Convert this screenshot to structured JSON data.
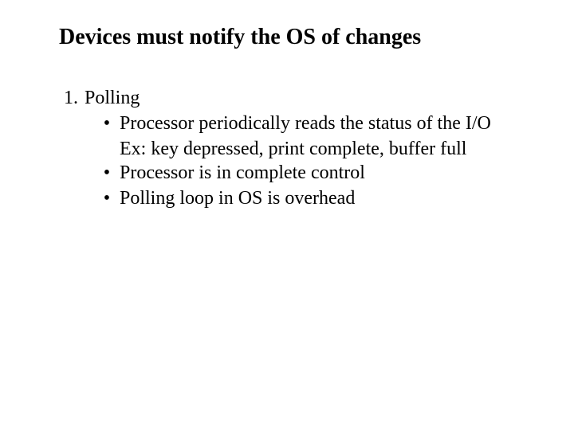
{
  "title": "Devices must notify the OS of changes",
  "list": {
    "number_marker": "1.",
    "number_label": "Polling",
    "bullet_marker": "•",
    "bullets": {
      "b1_line1": "Processor periodically reads the status of the I/O",
      "b1_line2": "Ex: key depressed, print complete, buffer full",
      "b2": "Processor is in complete control",
      "b3": "Polling loop in OS is overhead"
    }
  },
  "style": {
    "background_color": "#ffffff",
    "text_color": "#000000",
    "font_family": "Times New Roman",
    "title_fontsize": 28,
    "title_fontweight": "bold",
    "body_fontsize": 24,
    "slide_width": 720,
    "slide_height": 540
  }
}
